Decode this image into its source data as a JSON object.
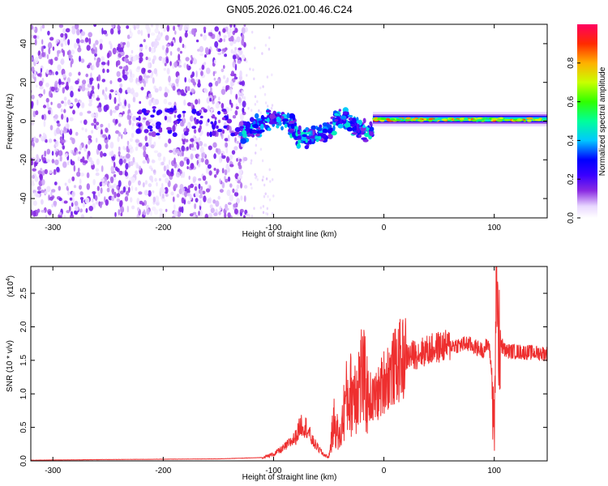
{
  "title": "GN05.2026.021.00.46.C24",
  "chart_data": [
    {
      "type": "heatmap",
      "title": "GN05.2026.021.00.46.C24",
      "xlabel": "Height of straight line (km)",
      "ylabel": "Frequency (Hz)",
      "xlim": [
        -320,
        148
      ],
      "ylim": [
        -50,
        50
      ],
      "x_ticks": [
        -300,
        -200,
        -100,
        0,
        100
      ],
      "y_ticks": [
        -40,
        -20,
        0,
        20,
        40
      ],
      "colorbar": {
        "label": "Normalized spectral amplitude",
        "range": [
          0.0,
          1.0
        ],
        "ticks": [
          "0.0",
          "0.2",
          "0.4",
          "0.6",
          "0.8"
        ],
        "colors": [
          "#ffffff",
          "#e9d8ff",
          "#8a2be2",
          "#3a00ff",
          "#0000ff",
          "#00c8ff",
          "#00ff9a",
          "#30ff00",
          "#c8ff00",
          "#ffb000",
          "#ff2a00",
          "#ff0060"
        ]
      },
      "regions": [
        {
          "name": "noise",
          "x_range": [
            -320,
            -125
          ],
          "f_range": [
            -50,
            50
          ],
          "description": "scattered purple speckle"
        },
        {
          "name": "emerging signal",
          "x_range": [
            -130,
            -10
          ],
          "f_range": [
            -12,
            8
          ],
          "description": "wavering tone around 0 Hz"
        },
        {
          "name": "tone",
          "x_range": [
            -10,
            148
          ],
          "f_range": [
            -1,
            2
          ],
          "description": "steady carrier near 0-1 Hz"
        }
      ]
    },
    {
      "type": "line",
      "xlabel": "Height of straight line (km)",
      "ylabel": "SNR (10 * v/v)",
      "scale_label": "(x10",
      "scale_exp": "4",
      "xlim": [
        -320,
        148
      ],
      "ylim": [
        0.0,
        2.9
      ],
      "x_ticks": [
        -300,
        -200,
        -100,
        0,
        100
      ],
      "y_ticks": [
        "0.0",
        "0.5",
        "1.0",
        "1.5",
        "2.0",
        "2.5"
      ],
      "series": [
        {
          "name": "SNR",
          "color": "#ee2f2f",
          "x": [
            -320,
            -250,
            -150,
            -110,
            -100,
            -90,
            -80,
            -75,
            -70,
            -65,
            -60,
            -55,
            -50,
            -45,
            -40,
            -35,
            -30,
            -25,
            -20,
            -15,
            -10,
            -5,
            0,
            5,
            10,
            15,
            20,
            30,
            40,
            50,
            60,
            70,
            75,
            80,
            85,
            90,
            95,
            98,
            100,
            102,
            104,
            110,
            120,
            130,
            148
          ],
          "values": [
            0.01,
            0.02,
            0.03,
            0.05,
            0.1,
            0.2,
            0.35,
            0.55,
            0.5,
            0.3,
            0.2,
            0.1,
            0.05,
            0.6,
            0.3,
            0.9,
            1.0,
            1.1,
            1.3,
            1.0,
            0.9,
            1.0,
            1.2,
            1.3,
            1.4,
            1.5,
            1.55,
            1.6,
            1.65,
            1.7,
            1.72,
            1.73,
            1.75,
            1.72,
            1.68,
            1.65,
            1.75,
            1.3,
            0.5,
            2.8,
            1.8,
            1.64,
            1.63,
            1.62,
            1.6
          ]
        }
      ]
    }
  ]
}
